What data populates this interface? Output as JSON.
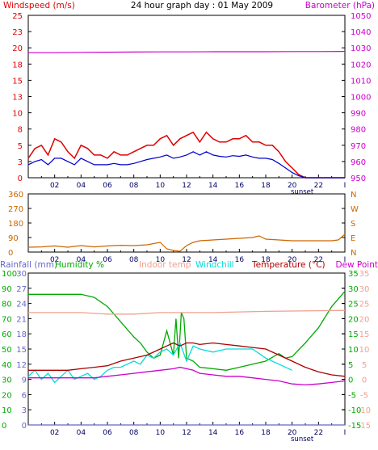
{
  "title": "24 hour graph day : 01 May 2009",
  "colors": {
    "wind": "#e00000",
    "gust": "#e00000",
    "avg": "#0000cc",
    "baro": "#cc00cc",
    "dir": "#cc6600",
    "rain": "#6666cc",
    "hum": "#00aa00",
    "indoor": "#f0a090",
    "chill": "#00dddd",
    "temp": "#aa0000",
    "dew": "#cc00cc"
  },
  "chart_data": [
    {
      "type": "line",
      "panel": "wind",
      "left_label": "Windspeed (m/s)",
      "right_label": "Barometer (hPa)",
      "left_ticks": [
        "0",
        "3",
        "5",
        "8",
        "10",
        "13",
        "15",
        "18",
        "20",
        "23",
        "25"
      ],
      "right_ticks": [
        "950",
        "960",
        "970",
        "980",
        "990",
        "1000",
        "1010",
        "1020",
        "1030",
        "1040",
        "1050"
      ],
      "ylim_left": [
        0,
        25
      ],
      "ylim_right": [
        950,
        1050
      ],
      "x_ticks": [
        "02",
        "04",
        "06",
        "08",
        "10",
        "12",
        "14",
        "16",
        "18",
        "20",
        "22"
      ],
      "x_end_tick": "I",
      "annotations": [
        "sunset"
      ],
      "series": [
        {
          "key": "gust",
          "axis": "left",
          "x": [
            0,
            0.5,
            1,
            1.5,
            2,
            2.5,
            3,
            3.5,
            4,
            4.5,
            5,
            5.5,
            6,
            6.5,
            7,
            7.5,
            8,
            8.5,
            9,
            9.5,
            10,
            10.5,
            11,
            11.5,
            12,
            12.5,
            13,
            13.5,
            14,
            14.5,
            15,
            15.5,
            16,
            16.5,
            17,
            17.5,
            18,
            18.5,
            19,
            19.5,
            20,
            20.5,
            21,
            21.5,
            22,
            22.5,
            23,
            23.5,
            24
          ],
          "values": [
            3,
            4.5,
            5,
            3.5,
            6,
            5.5,
            4,
            3,
            5,
            4.5,
            3.5,
            3.5,
            3,
            4,
            3.5,
            3.5,
            4,
            4.5,
            5,
            5,
            6,
            6.5,
            5,
            6,
            6.5,
            7,
            5.5,
            7,
            6,
            5.5,
            5.5,
            6,
            6,
            6.5,
            5.5,
            5.5,
            5,
            5,
            4,
            2.5,
            1.5,
            0.5,
            0,
            0,
            0,
            0,
            0,
            0,
            0
          ]
        },
        {
          "key": "avg",
          "axis": "left",
          "x": [
            0,
            0.5,
            1,
            1.5,
            2,
            2.5,
            3,
            3.5,
            4,
            4.5,
            5,
            5.5,
            6,
            6.5,
            7,
            7.5,
            8,
            8.5,
            9,
            9.5,
            10,
            10.5,
            11,
            11.5,
            12,
            12.5,
            13,
            13.5,
            14,
            14.5,
            15,
            15.5,
            16,
            16.5,
            17,
            17.5,
            18,
            18.5,
            19,
            19.5,
            20,
            20.5,
            21,
            21.5,
            22,
            22.5,
            23,
            23.5,
            24
          ],
          "values": [
            2,
            2.5,
            2.8,
            2,
            3,
            3,
            2.5,
            2,
            3,
            2.5,
            2,
            2,
            2,
            2.2,
            2,
            2,
            2.2,
            2.5,
            2.8,
            3,
            3.2,
            3.5,
            3,
            3.2,
            3.5,
            4,
            3.5,
            4,
            3.5,
            3.3,
            3.2,
            3.4,
            3.3,
            3.5,
            3.2,
            3,
            3,
            2.8,
            2.2,
            1.5,
            0.8,
            0.3,
            0,
            0,
            0,
            0,
            0,
            0,
            0
          ]
        },
        {
          "key": "baro",
          "axis": "right",
          "x": [
            0,
            2,
            4,
            6,
            8,
            10,
            12,
            14,
            16,
            18,
            20,
            22,
            24
          ],
          "values": [
            1027,
            1027,
            1027.2,
            1027.3,
            1027.4,
            1027.5,
            1027.5,
            1027.6,
            1027.6,
            1027.6,
            1027.7,
            1027.7,
            1027.8
          ]
        }
      ]
    },
    {
      "type": "line",
      "panel": "direction",
      "left_ticks": [
        "0",
        "90",
        "180",
        "270",
        "360"
      ],
      "right_ticks": [
        "N",
        "E",
        "S",
        "W",
        "N"
      ],
      "ylim_left": [
        0,
        360
      ],
      "x_ticks": [
        "02",
        "04",
        "06",
        "08",
        "10",
        "12",
        "14",
        "16",
        "18",
        "20",
        "22"
      ],
      "x_end_tick": "I",
      "series": [
        {
          "key": "dir",
          "axis": "left",
          "x": [
            0,
            1,
            2,
            3,
            4,
            5,
            6,
            7,
            8,
            9,
            10,
            10.5,
            11,
            11.5,
            12,
            12.5,
            13,
            14,
            15,
            16,
            17,
            17.5,
            18,
            19,
            20,
            21,
            22,
            23,
            23.5,
            24
          ],
          "values": [
            30,
            32,
            38,
            30,
            40,
            32,
            38,
            42,
            40,
            45,
            60,
            20,
            10,
            5,
            40,
            60,
            70,
            75,
            80,
            85,
            90,
            100,
            80,
            75,
            70,
            70,
            70,
            70,
            75,
            110
          ]
        }
      ]
    },
    {
      "type": "line",
      "panel": "temperature",
      "legend": [
        "Rainfall (mm)",
        "Humidity %",
        "Indoor temp",
        "Windchill",
        "Temperature (°C)",
        "Dew Point"
      ],
      "left_rain_ticks": [
        "0",
        "3",
        "6",
        "9",
        "12",
        "15",
        "18",
        "21",
        "24",
        "27",
        "30"
      ],
      "left_hum_ticks": [
        "0",
        "10",
        "20",
        "30",
        "40",
        "50",
        "60",
        "70",
        "80",
        "90",
        "100"
      ],
      "right_temp_ticks": [
        "-15",
        "-10",
        "-5",
        "0",
        "5",
        "10",
        "15",
        "20",
        "25",
        "30",
        "35"
      ],
      "ylim_rain": [
        0,
        30
      ],
      "ylim_hum": [
        0,
        100
      ],
      "ylim_temp": [
        -15,
        35
      ],
      "x_ticks": [
        "02",
        "04",
        "06",
        "08",
        "10",
        "12",
        "14",
        "16",
        "18",
        "20",
        "22"
      ],
      "x_end_tick": "I",
      "annotations": [
        "sunset"
      ],
      "series": [
        {
          "key": "hum",
          "axis": "hum",
          "x": [
            0,
            1,
            2,
            3,
            4,
            5,
            6,
            7,
            8,
            8.5,
            9,
            9.5,
            10,
            10.5,
            11,
            11.2,
            11.4,
            11.6,
            11.8,
            12,
            12.5,
            13,
            14,
            15,
            16,
            17,
            18,
            19,
            19.5,
            20,
            21,
            22,
            23,
            24
          ],
          "values": [
            86,
            86,
            86,
            86,
            86,
            84,
            78,
            68,
            58,
            54,
            48,
            44,
            46,
            62,
            46,
            70,
            44,
            74,
            70,
            44,
            42,
            38,
            37,
            36,
            38,
            40,
            42,
            47,
            44,
            45,
            54,
            64,
            78,
            88
          ]
        },
        {
          "key": "indoor",
          "axis": "temp",
          "x": [
            0,
            2,
            4,
            6,
            8,
            10,
            12,
            14,
            16,
            18,
            20,
            22,
            24
          ],
          "values": [
            22,
            22,
            22,
            21.5,
            21.5,
            22,
            22,
            22,
            22.2,
            22.4,
            22.5,
            22.6,
            22.7
          ]
        },
        {
          "key": "chill",
          "axis": "temp",
          "x": [
            0,
            0.5,
            1,
            1.5,
            2,
            2.5,
            3,
            3.5,
            4,
            4.5,
            5,
            5.5,
            6,
            6.5,
            7,
            7.5,
            8,
            8.5,
            9,
            9.5,
            10,
            10.5,
            11,
            11.5,
            12,
            12.5,
            13,
            14,
            15,
            16,
            17,
            18,
            19,
            20
          ],
          "values": [
            1,
            3,
            0,
            2,
            -1,
            1,
            3,
            0,
            1,
            2,
            0,
            1,
            3,
            4,
            4,
            5,
            6,
            5,
            8,
            7,
            9,
            10,
            8,
            12,
            6,
            11,
            10,
            9,
            10,
            10,
            10,
            7,
            5,
            3
          ]
        },
        {
          "key": "temp",
          "axis": "temp",
          "x": [
            0,
            1,
            2,
            3,
            4,
            5,
            6,
            7,
            8,
            9,
            10,
            10.5,
            11,
            11.5,
            12,
            12.5,
            13,
            14,
            15,
            16,
            17,
            18,
            19,
            20,
            21,
            22,
            23,
            24
          ],
          "values": [
            3,
            3,
            3,
            3,
            3.5,
            4,
            4.5,
            6,
            7,
            8,
            10,
            11,
            12,
            11,
            12,
            12,
            11.5,
            12,
            11.5,
            11,
            10.5,
            10,
            8,
            6,
            4,
            2.5,
            1.5,
            1
          ]
        },
        {
          "key": "dew",
          "axis": "temp",
          "x": [
            0,
            1,
            2,
            3,
            4,
            5,
            6,
            7,
            8,
            9,
            10,
            11,
            11.5,
            12,
            12.5,
            13,
            14,
            15,
            16,
            17,
            18,
            19,
            20,
            21,
            22,
            23,
            24
          ],
          "values": [
            0.5,
            0.5,
            0.5,
            0.5,
            0.5,
            0.5,
            1,
            1.5,
            2,
            2.5,
            3,
            3.5,
            4,
            3.5,
            3,
            2,
            1.5,
            1,
            1,
            0.5,
            0,
            -0.5,
            -1.5,
            -1.8,
            -1.5,
            -1,
            -0.5
          ]
        },
        {
          "key": "rain",
          "axis": "rain",
          "x": [
            0,
            24
          ],
          "values": [
            0,
            0
          ]
        }
      ]
    }
  ]
}
